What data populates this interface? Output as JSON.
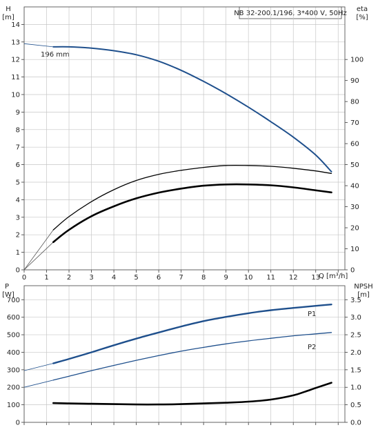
{
  "chart_data": [
    {
      "type": "line",
      "legend_box": "NB 32-200.1/196, 3*400 V, 50Hz",
      "left_axis": {
        "title": "H",
        "unit": "[m]",
        "range": [
          0,
          15
        ],
        "ticks": [
          "0",
          "1",
          "2",
          "3",
          "4",
          "5",
          "6",
          "7",
          "8",
          "9",
          "10",
          "11",
          "12",
          "13",
          "14"
        ]
      },
      "right_axis": {
        "title": "eta",
        "unit": "[%]",
        "range": [
          0,
          125
        ],
        "ticks": [
          "0",
          "10",
          "20",
          "30",
          "40",
          "50",
          "60",
          "70",
          "80",
          "90",
          "100"
        ]
      },
      "x_axis": {
        "label": "Q [m³/h]",
        "range": [
          0,
          14.3
        ],
        "ticks": [
          "0",
          "1",
          "2",
          "3",
          "4",
          "5",
          "6",
          "7",
          "8",
          "9",
          "10",
          "11",
          "12",
          "13"
        ]
      },
      "curve_label": "196 mm",
      "series": [
        {
          "id": "head",
          "axis": "left",
          "thin_part": {
            "x": [
              0,
              1.3
            ],
            "y": [
              12.9,
              12.72
            ]
          },
          "x": [
            1.3,
            2,
            3,
            4,
            5,
            6,
            7,
            8,
            9,
            10,
            11,
            12,
            13,
            13.7
          ],
          "y": [
            12.72,
            12.72,
            12.65,
            12.5,
            12.27,
            11.9,
            11.38,
            10.75,
            10.05,
            9.28,
            8.45,
            7.57,
            6.55,
            5.6
          ]
        },
        {
          "id": "eta",
          "axis": "right",
          "thin_part": {
            "x": [
              0,
              1.3
            ],
            "y": [
              0,
              19
            ]
          },
          "x": [
            1.3,
            2,
            3,
            4,
            5,
            6,
            7,
            8,
            9,
            10,
            11,
            12,
            13,
            13.7
          ],
          "y": [
            19,
            25.3,
            32.4,
            38.1,
            42.5,
            45.4,
            47.3,
            48.7,
            49.6,
            49.6,
            49.2,
            48.3,
            47,
            45.8
          ]
        },
        {
          "id": "eta_total",
          "axis": "right",
          "thin_part": {
            "x": [
              0,
              1.3
            ],
            "y": [
              0,
              13.2
            ]
          },
          "x": [
            1.3,
            2,
            3,
            4,
            5,
            6,
            7,
            8,
            9,
            10,
            11,
            12,
            13,
            13.7
          ],
          "y": [
            13.2,
            19,
            25.5,
            30.2,
            34,
            36.7,
            38.6,
            40,
            40.6,
            40.6,
            40.2,
            39.2,
            37.8,
            36.8
          ]
        }
      ]
    },
    {
      "type": "line",
      "left_axis": {
        "title": "P",
        "unit": "[W]",
        "range": [
          0,
          780
        ],
        "ticks": [
          "0",
          "100",
          "200",
          "300",
          "400",
          "500",
          "600",
          "700"
        ]
      },
      "right_axis": {
        "title": "NPSH",
        "unit": "[m]",
        "range": [
          0,
          3.9
        ],
        "ticks": [
          "0.0",
          "0.5",
          "1.0",
          "1.5",
          "2.0",
          "2.5",
          "3.0",
          "3.5"
        ]
      },
      "x_axis": {
        "range": [
          0,
          14.3
        ]
      },
      "series": [
        {
          "name": "P1",
          "axis": "left",
          "thin_part": {
            "x": [
              0,
              1.3
            ],
            "y": [
              295,
              337
            ]
          },
          "x": [
            1.3,
            2,
            3,
            4,
            5,
            6,
            7,
            8,
            9,
            10,
            11,
            12,
            13,
            13.7
          ],
          "y": [
            337,
            362,
            400,
            440,
            478,
            513,
            547,
            578,
            602,
            623,
            640,
            653,
            665,
            673
          ]
        },
        {
          "name": "P2",
          "axis": "left",
          "thin_part": {
            "x": [
              0,
              1.3
            ],
            "y": [
              200,
              241
            ]
          },
          "x": [
            1.3,
            2,
            3,
            4,
            5,
            6,
            7,
            8,
            9,
            10,
            11,
            12,
            13,
            13.7
          ],
          "y": [
            241,
            263,
            295,
            325,
            354,
            381,
            406,
            428,
            448,
            465,
            480,
            494,
            505,
            513
          ]
        },
        {
          "id": "npsh",
          "axis": "right",
          "x": [
            1.3,
            2,
            3,
            4,
            5,
            6,
            7,
            8,
            9,
            10,
            11,
            12,
            12.5,
            13,
            13.7
          ],
          "y": [
            0.55,
            0.54,
            0.53,
            0.52,
            0.51,
            0.51,
            0.52,
            0.54,
            0.56,
            0.59,
            0.65,
            0.77,
            0.87,
            0.98,
            1.13
          ]
        }
      ]
    }
  ],
  "colors": {
    "blue": "#1e4f8c",
    "black": "#000000",
    "grid": "#c6c6c6",
    "thin": "#555555"
  }
}
